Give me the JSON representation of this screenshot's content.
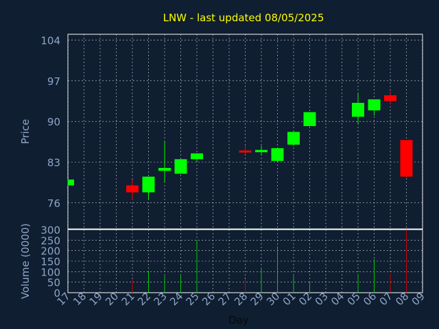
{
  "chart_data": {
    "type": "candlestick",
    "title": "LNW - last updated 08/05/2025",
    "xlabel": "Day",
    "ylabel_price": "Price",
    "ylabel_volume": "Volume (0000)",
    "price_ylim": [
      71.5,
      105
    ],
    "price_ticks": [
      "104",
      "97",
      "90",
      "83",
      "76"
    ],
    "volume_ylim": [
      0,
      300
    ],
    "volume_ticks": [
      "300",
      "250",
      "200",
      "150",
      "100",
      "50",
      "0"
    ],
    "x_labels": [
      "17",
      "18",
      "19",
      "20",
      "21",
      "22",
      "23",
      "24",
      "25",
      "26",
      "27",
      "28",
      "29",
      "30",
      "01",
      "02",
      "03",
      "04",
      "05",
      "06",
      "07",
      "08",
      "09"
    ],
    "grid": true,
    "colors": {
      "background": "#0f1e30",
      "title": "#ffff00",
      "axis_text": "#8fa6c8",
      "grid": "#d8d8d8",
      "up": "#00ff00",
      "down": "#ff0000",
      "volume_up": "#00cc00",
      "volume_down": "#cc0000"
    },
    "candles": [
      {
        "day": "17",
        "open": 79.0,
        "close": 80.0,
        "high": 80.0,
        "low": 79.0,
        "volume": 0
      },
      {
        "day": "21",
        "open": 79.0,
        "close": 77.8,
        "high": 80.0,
        "low": 76.5,
        "volume": 65
      },
      {
        "day": "22",
        "open": 77.8,
        "close": 80.5,
        "high": 80.5,
        "low": 76.5,
        "volume": 105
      },
      {
        "day": "23",
        "open": 81.5,
        "close": 82.0,
        "high": 86.5,
        "low": 79.5,
        "volume": 80
      },
      {
        "day": "24",
        "open": 81.0,
        "close": 83.5,
        "high": 83.5,
        "low": 81.0,
        "volume": 85
      },
      {
        "day": "25",
        "open": 83.5,
        "close": 84.5,
        "high": 84.5,
        "low": 83.0,
        "volume": 250
      },
      {
        "day": "28",
        "open": 85.0,
        "close": 84.7,
        "high": 85.8,
        "low": 84.3,
        "volume": 65
      },
      {
        "day": "29",
        "open": 84.7,
        "close": 85.1,
        "high": 85.8,
        "low": 84.2,
        "volume": 120
      },
      {
        "day": "30",
        "open": 83.2,
        "close": 85.4,
        "high": 85.4,
        "low": 83.0,
        "volume": 220
      },
      {
        "day": "01",
        "open": 86.0,
        "close": 88.2,
        "high": 88.2,
        "low": 85.8,
        "volume": 80
      },
      {
        "day": "02",
        "open": 89.2,
        "close": 91.6,
        "high": 91.6,
        "low": 89.2,
        "volume": 55
      },
      {
        "day": "05",
        "open": 90.8,
        "close": 93.2,
        "high": 94.9,
        "low": 89.5,
        "volume": 90
      },
      {
        "day": "06",
        "open": 91.9,
        "close": 93.8,
        "high": 93.8,
        "low": 91.0,
        "volume": 160
      },
      {
        "day": "07",
        "open": 94.5,
        "close": 93.5,
        "high": 95.2,
        "low": 93.0,
        "volume": 90
      },
      {
        "day": "08",
        "open": 86.8,
        "close": 80.5,
        "high": 86.8,
        "low": 80.5,
        "volume": 300
      }
    ]
  }
}
